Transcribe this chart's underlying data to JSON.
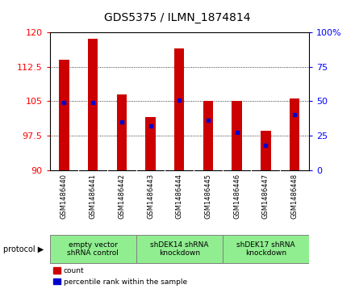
{
  "title": "GDS5375 / ILMN_1874814",
  "samples": [
    "GSM1486440",
    "GSM1486441",
    "GSM1486442",
    "GSM1486443",
    "GSM1486444",
    "GSM1486445",
    "GSM1486446",
    "GSM1486447",
    "GSM1486448"
  ],
  "counts": [
    114.0,
    118.5,
    106.5,
    101.5,
    116.5,
    105.0,
    105.0,
    98.5,
    105.5
  ],
  "percentiles": [
    49,
    49,
    35,
    32,
    51,
    36,
    27,
    18,
    40
  ],
  "ylim_left": [
    90,
    120
  ],
  "ylim_right": [
    0,
    100
  ],
  "yticks_left": [
    90,
    97.5,
    105,
    112.5,
    120
  ],
  "yticks_right": [
    0,
    25,
    50,
    75,
    100
  ],
  "groups": [
    {
      "label": "empty vector\nshRNA control",
      "start": 0,
      "end": 3
    },
    {
      "label": "shDEK14 shRNA\nknockdown",
      "start": 3,
      "end": 6
    },
    {
      "label": "shDEK17 shRNA\nknockdown",
      "start": 6,
      "end": 9
    }
  ],
  "bar_color": "#cc0000",
  "dot_color": "#0000cc",
  "bar_width": 0.35,
  "group_bg": "#90ee90",
  "sample_bg": "#d4d4d4",
  "plot_bg": "#ffffff"
}
